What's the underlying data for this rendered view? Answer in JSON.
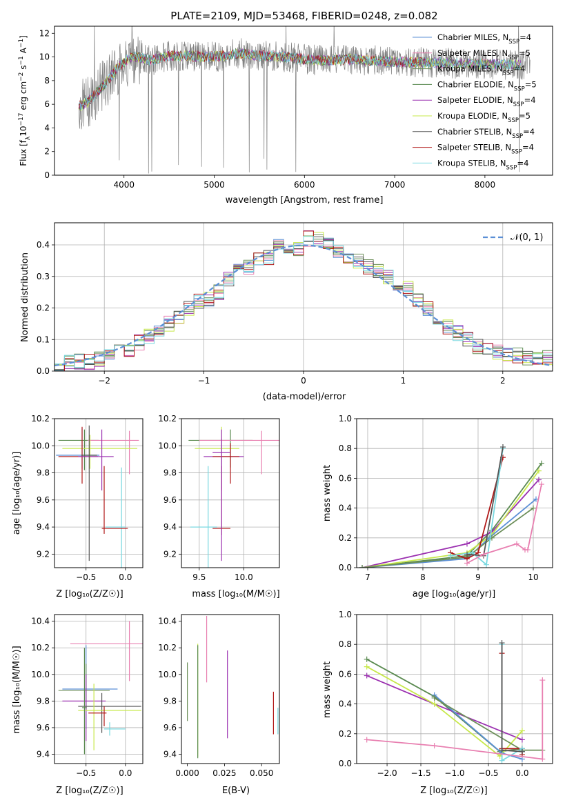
{
  "series_colors": [
    "#5b8fd6",
    "#e87fb0",
    "#6d8f5a",
    "#5a8a50",
    "#9b30b0",
    "#c7e84a",
    "#555555",
    "#b01818",
    "#78d8e0"
  ],
  "chart_data": [
    {
      "id": "spectrum",
      "type": "line",
      "title": "PLATE=2109, MJD=53468, FIBERID=0248, z=0.082",
      "xlabel": "wavelength [Angstrom, rest frame]",
      "ylabel_main": "Flux [f",
      "ylabel_sub": "λ",
      "ylabel_rest": "10",
      "ylabel_exp1": "−17",
      "ylabel_unit": " erg cm",
      "ylabel_exp2": "−2",
      "ylabel_s": " s",
      "ylabel_exp3": "−1",
      "ylabel_A": " A",
      "ylabel_exp4": "−1",
      "ylabel_end": "]",
      "xlim": [
        3230,
        8750
      ],
      "ylim": [
        0,
        12.6
      ],
      "xticks": [
        4000,
        5000,
        6000,
        7000,
        8000
      ],
      "yticks": [
        0,
        2,
        4,
        6,
        8,
        10,
        12
      ],
      "grid": false,
      "legend_position": "top-right",
      "legend": [
        {
          "name": "Chabrier MILES, N",
          "sub": "SSP",
          "val": "=4"
        },
        {
          "name": "Salpeter MILES, N",
          "sub": "SSP",
          "val": "=5"
        },
        {
          "name": "Kroupa MILES, N",
          "sub": "SSP",
          "val": "=4"
        },
        {
          "name": "Chabrier ELODIE, N",
          "sub": "SSP",
          "val": "=5"
        },
        {
          "name": "Salpeter ELODIE, N",
          "sub": "SSP",
          "val": "=4"
        },
        {
          "name": "Kroupa ELODIE, N",
          "sub": "SSP",
          "val": "=5"
        },
        {
          "name": "Chabrier STELIB, N",
          "sub": "SSP",
          "val": "=4"
        },
        {
          "name": "Salpeter STELIB, N",
          "sub": "SSP",
          "val": "=4"
        },
        {
          "name": "Kroupa STELIB, N",
          "sub": "SSP",
          "val": "=4"
        }
      ],
      "continuum": {
        "x": [
          3500,
          3600,
          3700,
          3800,
          3900,
          4000,
          4100,
          4200,
          4300,
          4500,
          4700,
          4900,
          5100,
          5300,
          5500,
          5800,
          6000,
          6200,
          6500,
          7000,
          7500,
          8000,
          8500
        ],
        "y": [
          5.8,
          6.2,
          7.0,
          7.8,
          8.8,
          9.6,
          10.0,
          9.9,
          9.7,
          10.1,
          10.1,
          10.0,
          10.1,
          10.3,
          10.1,
          10.0,
          9.8,
          9.7,
          9.8,
          9.6,
          9.5,
          9.4,
          9.3
        ]
      }
    },
    {
      "id": "residuals",
      "type": "step",
      "xlabel": "(data-model)/error",
      "ylabel": "Normed distribution",
      "xlim": [
        -2.5,
        2.5
      ],
      "ylim": [
        0,
        0.47
      ],
      "xticks": [
        -2,
        -1,
        0,
        1,
        2
      ],
      "xtick_labels": [
        "−2",
        "−1",
        "0",
        "1",
        "2"
      ],
      "yticks": [
        0.0,
        0.1,
        0.2,
        0.3,
        0.4
      ],
      "ytick_labels": [
        "0.0",
        "0.1",
        "0.2",
        "0.3",
        "0.4"
      ],
      "grid": true,
      "legend_label": "𝒩(0, 1)",
      "legend_position": "top-right",
      "bin_edges": [
        -2.5,
        -2.4,
        -2.3,
        -2.2,
        -2.1,
        -2.0,
        -1.9,
        -1.8,
        -1.7,
        -1.6,
        -1.5,
        -1.4,
        -1.3,
        -1.2,
        -1.1,
        -1.0,
        -0.9,
        -0.8,
        -0.7,
        -0.6,
        -0.5,
        -0.4,
        -0.3,
        -0.2,
        -0.1,
        0.0,
        0.1,
        0.2,
        0.3,
        0.4,
        0.5,
        0.6,
        0.7,
        0.8,
        0.9,
        1.0,
        1.1,
        1.2,
        1.3,
        1.4,
        1.5,
        1.6,
        1.7,
        1.8,
        1.9,
        2.0,
        2.1,
        2.2,
        2.3,
        2.4,
        2.5
      ],
      "base_values": [
        0.01,
        0.03,
        0.03,
        0.03,
        0.04,
        0.05,
        0.06,
        0.07,
        0.09,
        0.11,
        0.12,
        0.15,
        0.17,
        0.2,
        0.22,
        0.23,
        0.25,
        0.29,
        0.32,
        0.33,
        0.35,
        0.36,
        0.4,
        0.38,
        0.39,
        0.42,
        0.42,
        0.41,
        0.38,
        0.36,
        0.35,
        0.33,
        0.32,
        0.3,
        0.28,
        0.26,
        0.23,
        0.2,
        0.16,
        0.14,
        0.12,
        0.1,
        0.08,
        0.07,
        0.06,
        0.05,
        0.05,
        0.04,
        0.04,
        0.04
      ]
    },
    {
      "id": "age_vs_Z",
      "type": "errorbar",
      "xlabel": "Z [log₁₀(Z/Z☉)]",
      "ylabel": "age  [log₁₀(age/yr)]",
      "xlim": [
        -0.9,
        0.22
      ],
      "ylim": [
        9.1,
        10.2
      ],
      "xticks": [
        -0.5,
        0.0
      ],
      "xtick_labels": [
        "−0.5",
        "0.0"
      ],
      "yticks": [
        9.2,
        9.4,
        9.6,
        9.8,
        10.0,
        10.2
      ],
      "ytick_labels": [
        "9.2",
        "9.4",
        "9.6",
        "9.8",
        "10.0",
        "10.2"
      ],
      "grid": true,
      "points": [
        {
          "x": -0.52,
          "y": 10.04,
          "xerr": [
            0.33,
            0.18
          ],
          "yerr": [
            0.22,
            0.08
          ],
          "c": 3
        },
        {
          "x": 0.05,
          "y": 10.04,
          "xerr": [
            0.53,
            0.12
          ],
          "yerr": [
            0.25,
            0.07
          ],
          "c": 1
        },
        {
          "x": -0.45,
          "y": 9.98,
          "xerr": [
            0.35,
            0.6
          ],
          "yerr": [
            0.15,
            0.1
          ],
          "c": 5
        },
        {
          "x": -0.55,
          "y": 9.93,
          "xerr": [
            0.33,
            0.22
          ],
          "yerr": [
            0.1,
            0.2
          ],
          "c": 0
        },
        {
          "x": -0.55,
          "y": 9.92,
          "xerr": [
            0.3,
            0.2
          ],
          "yerr": [
            0.2,
            0.22
          ],
          "c": 7
        },
        {
          "x": -0.3,
          "y": 9.92,
          "xerr": [
            0.3,
            0.15
          ],
          "yerr": [
            0.25,
            0.2
          ],
          "c": 4
        },
        {
          "x": -0.05,
          "y": 9.4,
          "xerr": [
            0.2,
            0.05
          ],
          "yerr": [
            0.55,
            0.44
          ],
          "c": 8
        },
        {
          "x": -0.27,
          "y": 9.39,
          "xerr": [
            0.03,
            0.3
          ],
          "yerr": [
            0.04,
            0.46
          ],
          "c": 7
        },
        {
          "x": -0.46,
          "y": 9.93,
          "xerr": [
            0.1,
            0.1
          ],
          "yerr": [
            0.78,
            0.22
          ],
          "c": 6
        }
      ]
    },
    {
      "id": "age_vs_mass",
      "type": "errorbar",
      "xlabel": "mass [log₁₀(M/M☉)]",
      "ylabel": "",
      "xlim": [
        9.3,
        10.4
      ],
      "ylim": [
        9.1,
        10.2
      ],
      "xticks": [
        9.5,
        10.0
      ],
      "xtick_labels": [
        "9.5",
        "10.0"
      ],
      "yticks": [
        9.2,
        9.4,
        9.6,
        9.8,
        10.0,
        10.2
      ],
      "ytick_labels": [
        "9.2",
        "9.4",
        "9.6",
        "9.8",
        "10.0",
        "10.2"
      ],
      "grid": true,
      "points": [
        {
          "x": 9.85,
          "y": 10.04,
          "xerr": [
            0.47,
            0.25
          ],
          "yerr": [
            0.2,
            0.08
          ],
          "c": 3
        },
        {
          "x": 10.2,
          "y": 10.04,
          "xerr": [
            0.7,
            0.2
          ],
          "yerr": [
            0.25,
            0.07
          ],
          "c": 1
        },
        {
          "x": 9.75,
          "y": 9.98,
          "xerr": [
            0.3,
            0.2
          ],
          "yerr": [
            0.3,
            0.16
          ],
          "c": 5
        },
        {
          "x": 9.75,
          "y": 9.92,
          "xerr": [
            0.2,
            0.25
          ],
          "yerr": [
            0.25,
            0.2
          ],
          "c": 4
        },
        {
          "x": 9.85,
          "y": 9.92,
          "xerr": [
            0.2,
            0.1
          ],
          "yerr": [
            0.2,
            0.1
          ],
          "c": 7
        },
        {
          "x": 9.6,
          "y": 9.4,
          "xerr": [
            0.2,
            0.1
          ],
          "yerr": [
            0.3,
            0.45
          ],
          "c": 8
        },
        {
          "x": 9.75,
          "y": 9.39,
          "xerr": [
            0.1,
            0.1
          ],
          "yerr": [
            0.05,
            0.46
          ],
          "c": 7
        },
        {
          "x": 9.75,
          "y": 9.95,
          "xerr": [
            0.1,
            0.1
          ],
          "yerr": [
            0.8,
            0.1
          ],
          "c": 4
        }
      ]
    },
    {
      "id": "weight_vs_age",
      "type": "line",
      "xlabel": "age  [log₁₀(age/yr)]",
      "ylabel": "mass weight",
      "xlim": [
        6.8,
        10.35
      ],
      "ylim": [
        0,
        1.0
      ],
      "xticks": [
        7,
        8,
        9,
        10
      ],
      "xtick_labels": [
        "7",
        "8",
        "9",
        "10"
      ],
      "yticks": [
        0.0,
        0.2,
        0.4,
        0.6,
        0.8,
        1.0
      ],
      "ytick_labels": [
        "0.0",
        "0.2",
        "0.4",
        "0.6",
        "0.8",
        "1.0"
      ],
      "grid": true,
      "series": [
        {
          "c": 3,
          "x": [
            6.9,
            8.8,
            9.25,
            10.15
          ],
          "y": [
            0.0,
            0.08,
            0.25,
            0.7
          ]
        },
        {
          "c": 4,
          "x": [
            6.9,
            8.8,
            9.25,
            10.1
          ],
          "y": [
            0.0,
            0.16,
            0.24,
            0.59
          ]
        },
        {
          "c": 5,
          "x": [
            6.9,
            8.8,
            9.25,
            10.1
          ],
          "y": [
            0.0,
            0.1,
            0.22,
            0.65
          ]
        },
        {
          "c": 0,
          "x": [
            6.9,
            8.8,
            9.2,
            10.05
          ],
          "y": [
            0.0,
            0.06,
            0.2,
            0.46
          ]
        },
        {
          "c": 2,
          "x": [
            6.9,
            8.8,
            9.25,
            10.0
          ],
          "y": [
            0.0,
            0.07,
            0.2,
            0.4
          ]
        },
        {
          "c": 7,
          "x": [
            8.5,
            8.8,
            9.0,
            9.45
          ],
          "y": [
            0.1,
            0.06,
            0.1,
            0.74
          ]
        },
        {
          "c": 8,
          "x": [
            8.5,
            8.9,
            9.15,
            9.45
          ],
          "y": [
            0.08,
            0.1,
            0.02,
            0.8
          ]
        },
        {
          "c": 6,
          "x": [
            8.8,
            9.1,
            9.45
          ],
          "y": [
            0.09,
            0.08,
            0.81
          ]
        },
        {
          "c": 1,
          "x": [
            8.8,
            9.1,
            9.7,
            9.85,
            9.9,
            10.15
          ],
          "y": [
            0.03,
            0.09,
            0.16,
            0.12,
            0.12,
            0.56
          ]
        }
      ]
    },
    {
      "id": "mass_vs_Z",
      "type": "errorbar",
      "xlabel": "Z [log₁₀(Z/Z☉)]",
      "ylabel": "mass [log₁₀(M/M☉)]",
      "xlim": [
        -0.9,
        0.22
      ],
      "ylim": [
        9.33,
        10.45
      ],
      "xticks": [
        -0.5,
        0.0
      ],
      "xtick_labels": [
        "−0.5",
        "0.0"
      ],
      "yticks": [
        9.4,
        9.6,
        9.8,
        10.0,
        10.2,
        10.4
      ],
      "ytick_labels": [
        "9.4",
        "9.6",
        "9.8",
        "10.0",
        "10.2",
        "10.4"
      ],
      "grid": true,
      "points": [
        {
          "x": 0.05,
          "y": 10.23,
          "xerr": [
            0.75,
            0.17
          ],
          "yerr": [
            0.28,
            0.17
          ],
          "c": 1
        },
        {
          "x": -0.5,
          "y": 9.89,
          "xerr": [
            0.3,
            0.4
          ],
          "yerr": [
            0.3,
            0.33
          ],
          "c": 0
        },
        {
          "x": -0.5,
          "y": 9.88,
          "xerr": [
            0.35,
            0.3
          ],
          "yerr": [
            0.15,
            0.2
          ],
          "c": 2
        },
        {
          "x": -0.5,
          "y": 9.8,
          "xerr": [
            0.3,
            0.25
          ],
          "yerr": [
            0.3,
            0.2
          ],
          "c": 4
        },
        {
          "x": -0.3,
          "y": 9.76,
          "xerr": [
            0.3,
            0.5
          ],
          "yerr": [
            0.2,
            0.1
          ],
          "c": 6
        },
        {
          "x": -0.4,
          "y": 9.73,
          "xerr": [
            0.2,
            0.6
          ],
          "yerr": [
            0.3,
            0.2
          ],
          "c": 5
        },
        {
          "x": -0.27,
          "y": 9.71,
          "xerr": [
            0.2,
            0.03
          ],
          "yerr": [
            0.1,
            0.05
          ],
          "c": 7
        },
        {
          "x": -0.2,
          "y": 9.59,
          "xerr": [
            0.07,
            0.2
          ],
          "yerr": [
            0.05,
            0.05
          ],
          "c": 8
        },
        {
          "x": -0.52,
          "y": 9.75,
          "xerr": [
            0.03,
            0.03
          ],
          "yerr": [
            0.35,
            0.45
          ],
          "c": 3
        }
      ]
    },
    {
      "id": "mass_vs_ebv",
      "type": "errorbar",
      "xlabel": "E(B-V)",
      "ylabel": "",
      "xlim": [
        -0.004,
        0.062
      ],
      "ylim": [
        9.33,
        10.45
      ],
      "xticks": [
        0.0,
        0.025,
        0.05
      ],
      "xtick_labels": [
        "0.000",
        "0.025",
        "0.050"
      ],
      "yticks": [
        9.4,
        9.6,
        9.8,
        10.0,
        10.2,
        10.4
      ],
      "ytick_labels": [
        "9.4",
        "9.6",
        "9.8",
        "10.0",
        "10.2",
        "10.4"
      ],
      "grid": false,
      "points": [
        {
          "x": 0.0,
          "y": 9.87,
          "yerr": [
            0.22,
            0.22
          ],
          "c": 2
        },
        {
          "x": 0.007,
          "y": 9.8,
          "yerr": [
            0.42,
            0.43
          ],
          "c": 5
        },
        {
          "x": 0.007,
          "y": 9.8,
          "yerr": [
            0.43,
            0.42
          ],
          "c": 3
        },
        {
          "x": 0.013,
          "y": 10.19,
          "yerr": [
            0.25,
            0.25
          ],
          "c": 1
        },
        {
          "x": 0.027,
          "y": 9.85,
          "yerr": [
            0.33,
            0.33
          ],
          "c": 4
        },
        {
          "x": 0.058,
          "y": 9.71,
          "yerr": [
            0.16,
            0.16
          ],
          "c": 7
        },
        {
          "x": 0.061,
          "y": 9.65,
          "yerr": [
            0.1,
            0.1
          ],
          "c": 8
        }
      ]
    },
    {
      "id": "weight_vs_Z",
      "type": "line",
      "xlabel": "Z [log₁₀(Z/Z☉)]",
      "ylabel": "mass weight",
      "xlim": [
        -2.45,
        0.45
      ],
      "ylim": [
        0,
        1.0
      ],
      "xticks": [
        -2.0,
        -1.5,
        -1.0,
        -0.5,
        0.0
      ],
      "xtick_labels": [
        "−2.0",
        "−1.5",
        "−1.0",
        "−0.5",
        "0.0"
      ],
      "yticks": [
        0.0,
        0.2,
        0.4,
        0.6,
        0.8,
        1.0
      ],
      "ytick_labels": [
        "0.0",
        "0.2",
        "0.4",
        "0.6",
        "0.8",
        "1.0"
      ],
      "grid": true,
      "series": [
        {
          "c": 3,
          "x": [
            -2.3,
            -1.3,
            -0.33,
            0.0
          ],
          "y": [
            0.7,
            0.45,
            0.08,
            0.1
          ]
        },
        {
          "c": 4,
          "x": [
            -2.3,
            -1.3,
            0.0
          ],
          "y": [
            0.59,
            0.4,
            0.16
          ]
        },
        {
          "c": 5,
          "x": [
            -2.3,
            -1.3,
            -0.33,
            0.0
          ],
          "y": [
            0.65,
            0.4,
            0.05,
            0.22
          ]
        },
        {
          "c": 0,
          "x": [
            -1.3,
            -0.3,
            0.0
          ],
          "y": [
            0.46,
            0.07,
            0.03
          ]
        },
        {
          "c": 2,
          "x": [
            -1.3,
            0.0,
            0.3
          ],
          "y": [
            0.44,
            0.09,
            0.09
          ]
        },
        {
          "c": 7,
          "x": [
            -0.3,
            -0.3,
            0.0,
            0.0
          ],
          "y": [
            0.74,
            0.1,
            0.1,
            0.06
          ]
        },
        {
          "c": 8,
          "x": [
            -0.3,
            -0.3,
            0.0,
            0.0
          ],
          "y": [
            0.8,
            0.02,
            0.1,
            0.08
          ]
        },
        {
          "c": 6,
          "x": [
            -0.3,
            -0.3,
            0.0
          ],
          "y": [
            0.81,
            0.09,
            0.08
          ]
        },
        {
          "c": 1,
          "x": [
            -2.3,
            -1.3,
            0.3,
            0.3
          ],
          "y": [
            0.16,
            0.12,
            0.03,
            0.56
          ]
        }
      ]
    }
  ]
}
